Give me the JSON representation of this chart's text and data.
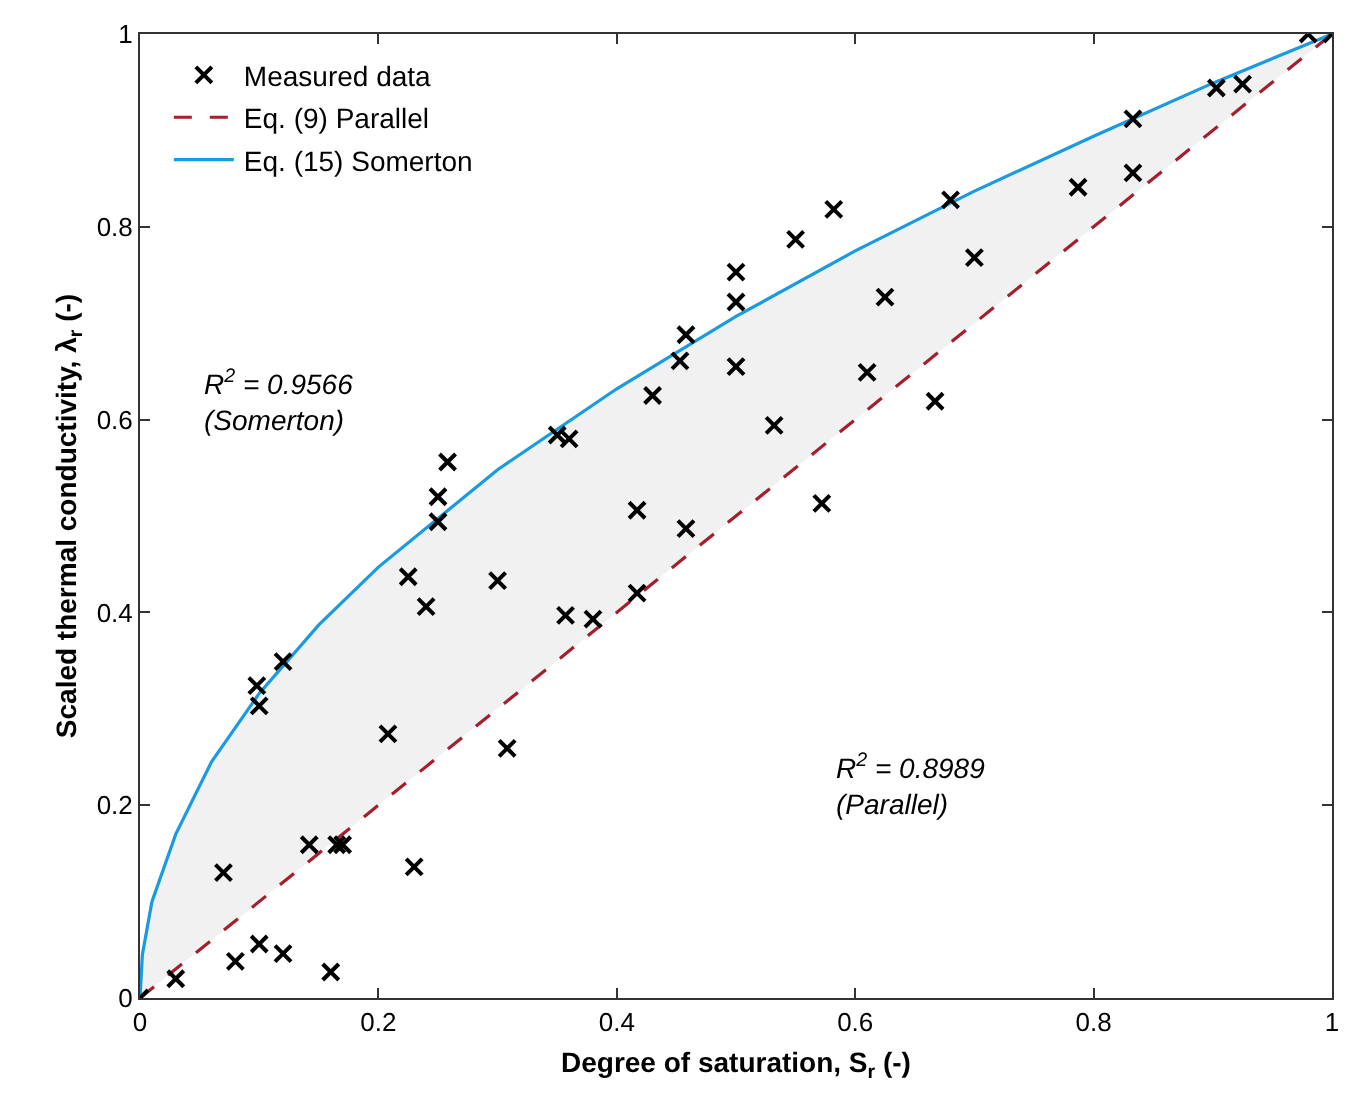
{
  "chart_data": {
    "type": "scatter",
    "xlabel": "Degree of saturation, S$_{r}$ (-)",
    "ylabel": "Scaled thermal conductivity, λ$_{r}$ (-)",
    "xlim": [
      0,
      1
    ],
    "ylim": [
      0,
      1
    ],
    "xticks": [
      0,
      0.2,
      0.4,
      0.6,
      0.8,
      1
    ],
    "yticks": [
      0,
      0.2,
      0.4,
      0.6,
      0.8,
      1
    ],
    "grid": false,
    "legend": "top left",
    "annotations": [
      "R$^{2}$ = 0.9566\n(Somerton)",
      "R$^{2}$ = 0.8989\n(Parallel)"
    ],
    "series": [
      {
        "name": "Measured data",
        "marker": "cross",
        "color": "#000000",
        "x": [
          0,
          0.03,
          0.07,
          0.08,
          0.1,
          0.12,
          0.16,
          0.142,
          0.165,
          0.17,
          0.23,
          0.208,
          0.308,
          0.098,
          0.1,
          0.12,
          0.225,
          0.24,
          0.3,
          0.357,
          0.38,
          0.25,
          0.258,
          0.25,
          0.35,
          0.36,
          0.417,
          0.458,
          0.417,
          0.43,
          0.453,
          0.458,
          0.5,
          0.5,
          0.5,
          0.532,
          0.55,
          0.582,
          0.572,
          0.61,
          0.625,
          0.667,
          0.68,
          0.7,
          0.787,
          0.833,
          0.833,
          0.903,
          0.925,
          0.98,
          1.0
        ],
        "values": [
          0,
          0.02,
          0.13,
          0.038,
          0.056,
          0.046,
          0.027,
          0.159,
          0.159,
          0.159,
          0.136,
          0.274,
          0.259,
          0.324,
          0.303,
          0.349,
          0.437,
          0.406,
          0.433,
          0.397,
          0.393,
          0.494,
          0.556,
          0.52,
          0.584,
          0.58,
          0.506,
          0.487,
          0.42,
          0.625,
          0.661,
          0.688,
          0.655,
          0.722,
          0.753,
          0.594,
          0.787,
          0.818,
          0.513,
          0.649,
          0.727,
          0.619,
          0.828,
          0.768,
          0.841,
          0.856,
          0.912,
          0.944,
          0.948,
          1.0,
          1.0
        ]
      },
      {
        "name": "Eq. (9) Parallel",
        "type": "line",
        "line_style": "dashed",
        "marker": "none",
        "color": "#a51e2d",
        "x": [
          0,
          1
        ],
        "values": [
          0,
          1
        ]
      },
      {
        "name": "Eq. (15) Somerton",
        "type": "line",
        "line_style": "solid",
        "marker": "none",
        "color": "#1a9ae0",
        "x": [
          0,
          0.002,
          0.01,
          0.03,
          0.06,
          0.1,
          0.15,
          0.2,
          0.3,
          0.4,
          0.5,
          0.6,
          0.7,
          0.8,
          0.9,
          1
        ],
        "values": [
          0,
          0.045,
          0.1,
          0.17,
          0.245,
          0.316,
          0.387,
          0.447,
          0.548,
          0.632,
          0.707,
          0.775,
          0.837,
          0.894,
          0.949,
          1
        ],
        "lower": [
          0,
          0.002,
          0.01,
          0.03,
          0.06,
          0.1,
          0.15,
          0.2,
          0.3,
          0.4,
          0.5,
          0.6,
          0.7,
          0.8,
          0.9,
          1
        ],
        "upper": [
          0,
          0.045,
          0.1,
          0.17,
          0.245,
          0.316,
          0.387,
          0.447,
          0.548,
          0.632,
          0.707,
          0.775,
          0.837,
          0.894,
          0.949,
          1
        ]
      }
    ]
  }
}
